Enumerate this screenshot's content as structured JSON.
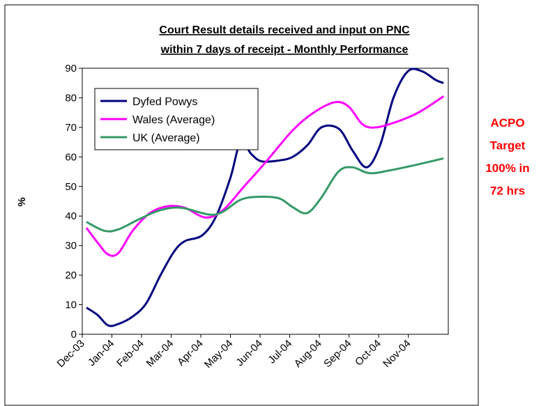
{
  "chart_data": {
    "type": "line",
    "title": [
      "Court Result details received and input on PNC",
      "within 7 days of receipt - Monthly Performance"
    ],
    "ylabel": "%",
    "annotation": [
      "ACPO",
      "Target",
      "100% in",
      "72 hrs"
    ],
    "annotation_color": "#ff0000",
    "xlim": [
      0,
      12.35
    ],
    "xticks": [
      {
        "value": 0,
        "label": "Dec-03"
      },
      {
        "value": 1,
        "label": "Jan-04"
      },
      {
        "value": 2,
        "label": "Feb-04"
      },
      {
        "value": 3,
        "label": "Mar-04"
      },
      {
        "value": 4,
        "label": "Apr-04"
      },
      {
        "value": 5,
        "label": "May-04"
      },
      {
        "value": 6,
        "label": "Jun-04"
      },
      {
        "value": 7,
        "label": "Jul-04"
      },
      {
        "value": 8,
        "label": "Aug-04"
      },
      {
        "value": 9,
        "label": "Sep-04"
      },
      {
        "value": 10,
        "label": "Oct-04"
      },
      {
        "value": 11,
        "label": "Nov-04"
      }
    ],
    "ylim": [
      0,
      90
    ],
    "yticks": [
      0,
      10,
      20,
      30,
      40,
      50,
      60,
      70,
      80,
      90
    ],
    "legend": "upper left",
    "series": [
      {
        "name": "Dyfed Powys",
        "color": "#000080",
        "x": [
          0.14,
          0.52,
          0.87,
          1.22,
          1.7,
          2.16,
          2.64,
          3.1,
          3.46,
          4.05,
          4.52,
          5.0,
          5.34,
          5.7,
          6.05,
          6.64,
          7.1,
          7.6,
          8.07,
          8.66,
          9.13,
          9.6,
          10.05,
          10.5,
          10.99,
          11.46,
          11.93,
          12.19
        ],
        "values": [
          9,
          6.5,
          3,
          3.5,
          6,
          10.5,
          20,
          28,
          31.5,
          33.5,
          40,
          53,
          65,
          61,
          58.5,
          58.8,
          60,
          64,
          70,
          69.5,
          62,
          56.5,
          64,
          80,
          89,
          89,
          86,
          85
        ]
      },
      {
        "name": "Wales (Average)",
        "color": "#ff00ff",
        "x": [
          0.14,
          0.52,
          0.87,
          1.22,
          1.7,
          2.28,
          2.87,
          3.46,
          4.16,
          4.75,
          5.46,
          6.17,
          7.1,
          7.81,
          8.52,
          8.99,
          9.46,
          9.93,
          10.64,
          11.34,
          12.19
        ],
        "values": [
          36,
          31,
          27,
          27.5,
          35,
          41,
          43.3,
          42.8,
          39.5,
          42,
          50,
          58,
          69,
          75,
          78.5,
          77,
          71,
          70,
          72,
          75,
          80.5
        ]
      },
      {
        "name": "UK (Average)",
        "color": "#339966",
        "x": [
          0.14,
          0.75,
          1.22,
          1.93,
          2.64,
          3.34,
          4.28,
          4.75,
          5.34,
          5.93,
          6.64,
          7.1,
          7.58,
          8.05,
          8.64,
          9.11,
          9.69,
          10.4,
          11.34,
          12.19
        ],
        "values": [
          38,
          35,
          35.5,
          39,
          42,
          42.8,
          40.5,
          41.5,
          45.5,
          46.5,
          46,
          43,
          41,
          46,
          55,
          56.5,
          54.5,
          55.5,
          57.5,
          59.5
        ]
      }
    ]
  }
}
